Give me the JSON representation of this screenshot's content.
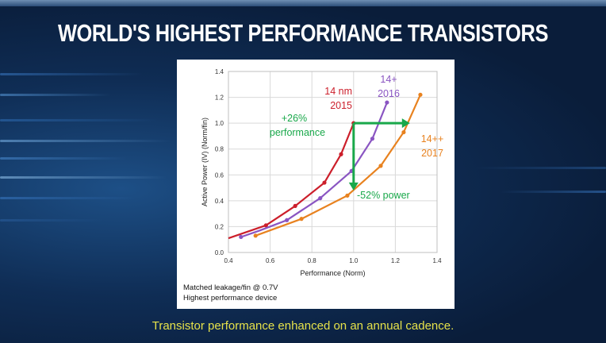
{
  "title": "WORLD'S HIGHEST PERFORMANCE TRANSISTORS",
  "caption": "Transistor performance enhanced on an annual cadence.",
  "colors": {
    "series_14nm": "#cc1f2b",
    "series_14plus": "#8a55c2",
    "series_14plusplus": "#e8821f",
    "annotation": "#19a84a"
  },
  "chart_data": {
    "type": "line",
    "xlabel": "Performance (Norm)",
    "ylabel": "Active Power (IV) (Norm/fin)",
    "xlim": [
      0.4,
      1.4
    ],
    "ylim": [
      0.0,
      1.4
    ],
    "xticks": [
      "0.4",
      "0.6",
      "0.8",
      "1.0",
      "1.2",
      "1.4"
    ],
    "yticks": [
      "0.0",
      "0.2",
      "0.4",
      "0.6",
      "0.8",
      "1.0",
      "1.2",
      "1.4"
    ],
    "grid": true,
    "series": [
      {
        "name": "14 nm 2015",
        "color": "#cc1f2b",
        "x": [
          0.4,
          0.58,
          0.72,
          0.86,
          0.94,
          1.0
        ],
        "y": [
          0.11,
          0.21,
          0.36,
          0.54,
          0.76,
          1.0
        ],
        "marked": [
          false,
          true,
          true,
          true,
          true,
          true
        ]
      },
      {
        "name": "14+ 2016",
        "color": "#8a55c2",
        "x": [
          0.46,
          0.55,
          0.68,
          0.84,
          0.99,
          1.09,
          1.16
        ],
        "y": [
          0.12,
          0.17,
          0.25,
          0.42,
          0.63,
          0.88,
          1.16
        ],
        "marked": [
          true,
          false,
          true,
          true,
          true,
          true,
          true
        ]
      },
      {
        "name": "14++ 2017",
        "color": "#e8821f",
        "x": [
          0.53,
          0.75,
          0.97,
          1.13,
          1.24,
          1.32
        ],
        "y": [
          0.13,
          0.26,
          0.44,
          0.67,
          0.93,
          1.22
        ],
        "marked": [
          true,
          true,
          true,
          true,
          true,
          true
        ]
      }
    ],
    "labels": [
      {
        "series": 0,
        "lines": [
          "14 nm",
          "2015"
        ]
      },
      {
        "series": 1,
        "lines": [
          "14+",
          "2016"
        ]
      },
      {
        "series": 2,
        "lines": [
          "14++",
          "2017"
        ]
      }
    ],
    "annotations": [
      {
        "text_lines": [
          "+26%",
          "performance"
        ],
        "kind": "horizontal-arrow",
        "from": [
          1.0,
          1.0
        ],
        "to": [
          1.27,
          1.0
        ]
      },
      {
        "text_lines": [
          "-52% power"
        ],
        "kind": "vertical-arrow",
        "from": [
          1.0,
          1.0
        ],
        "to": [
          1.0,
          0.48
        ]
      }
    ],
    "footnote": [
      "Matched leakage/fin @ 0.7V",
      "Highest performance device"
    ]
  }
}
